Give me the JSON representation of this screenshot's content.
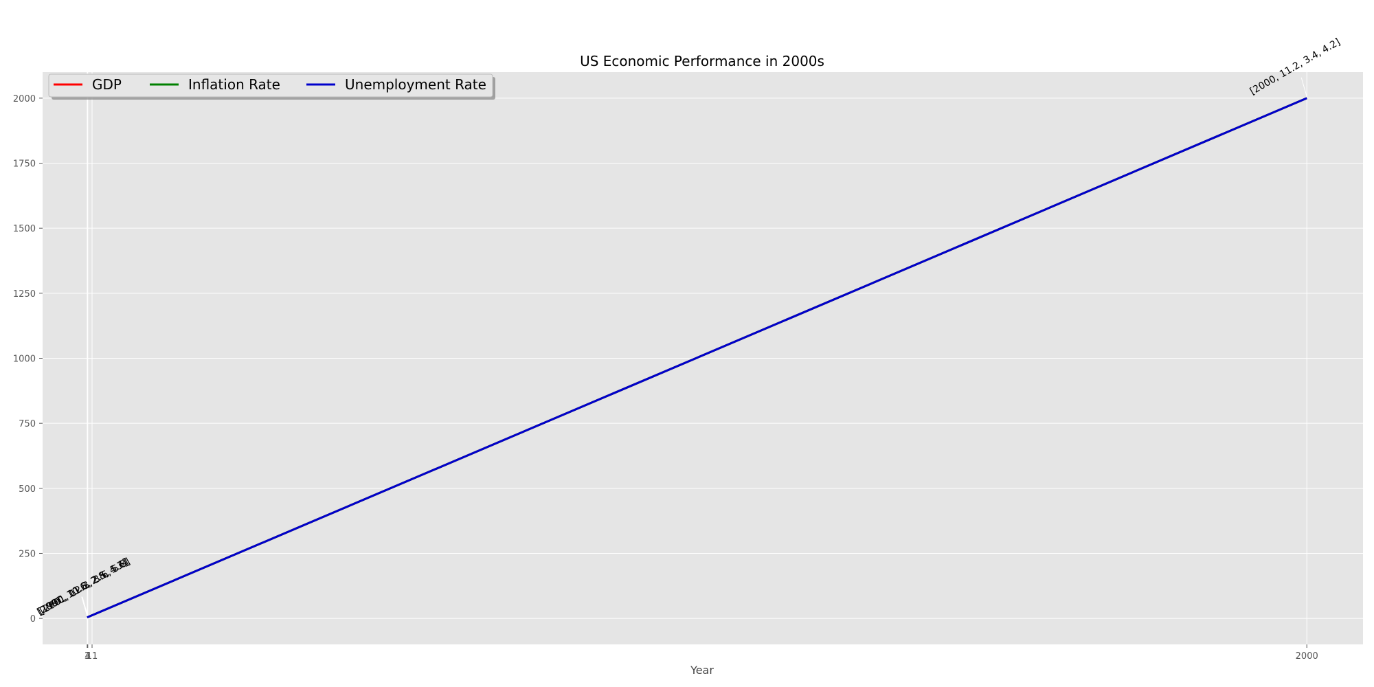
{
  "chart_data": {
    "type": "line",
    "title": "US Economic Performance in 2000s",
    "xlabel": "Year",
    "ylabel": "",
    "xlim": [
      -70,
      2092
    ],
    "ylim": [
      -100,
      2100
    ],
    "xticks": [
      {
        "value": 3,
        "label": "3"
      },
      {
        "value": 4,
        "label": "4"
      },
      {
        "value": 11,
        "label": "11"
      },
      {
        "value": 2000,
        "label": "2000"
      }
    ],
    "yticks": [
      0,
      250,
      500,
      750,
      1000,
      1250,
      1500,
      1750,
      2000
    ],
    "grid": true,
    "legend_position": "top-left",
    "series": [
      {
        "name": "GDP",
        "color": "#ff0000",
        "points": [
          {
            "x": 3,
            "y": 4
          },
          {
            "x": 2000,
            "y": 2000
          }
        ]
      },
      {
        "name": "Inflation Rate",
        "color": "#008000",
        "points": [
          {
            "x": 3,
            "y": 4
          },
          {
            "x": 2000,
            "y": 2000
          }
        ]
      },
      {
        "name": "Unemployment Rate",
        "color": "#0000cc",
        "points": [
          {
            "x": 3,
            "y": 4
          },
          {
            "x": 2000,
            "y": 2000
          }
        ]
      }
    ],
    "annotations": [
      {
        "x": 3,
        "y": 4,
        "text": "[2001, 10.6, 2.8, 4.7]"
      },
      {
        "x": 3,
        "y": 4,
        "text": "[1990, 11.8, 2.5, 5.6]"
      },
      {
        "x": 4,
        "y": 4,
        "text": "[2001, 12.3, 3.6, 5.8]"
      },
      {
        "x": 2000,
        "y": 2000,
        "text": "[2000, 11.2, 3.4, 4.2]"
      }
    ]
  }
}
